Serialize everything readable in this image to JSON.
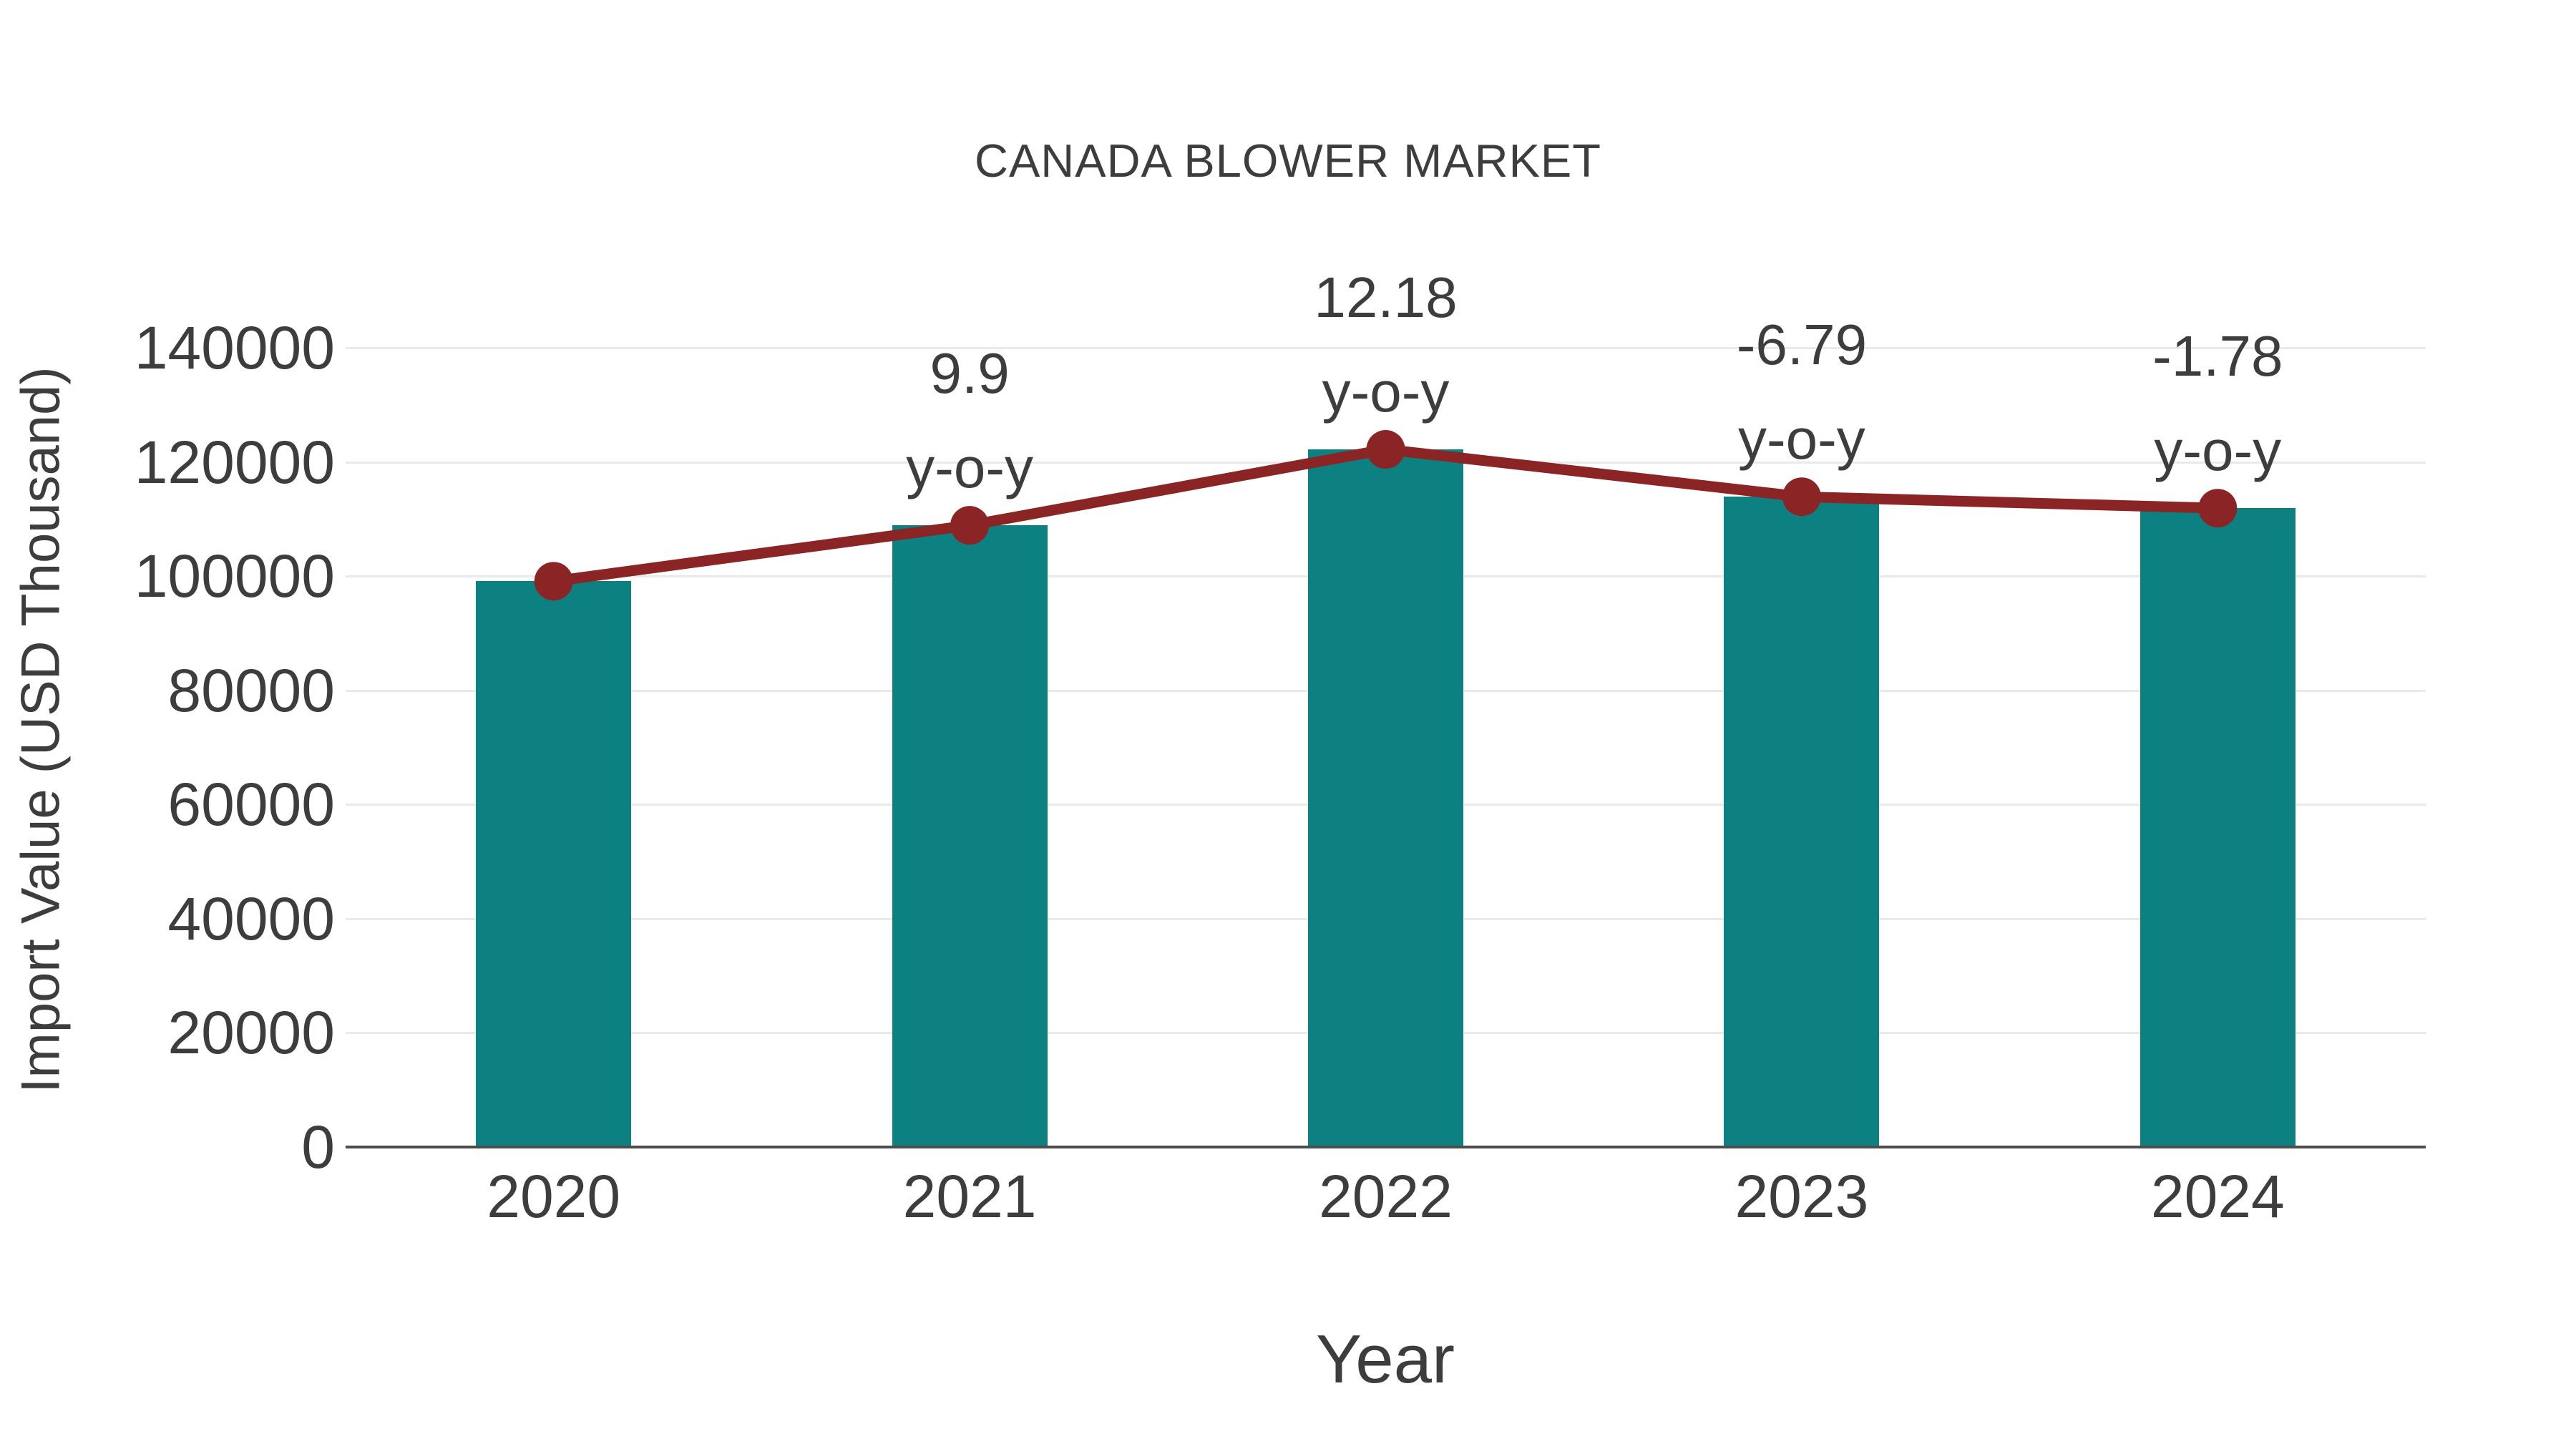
{
  "chart_data": {
    "type": "bar",
    "title": "CANADA BLOWER MARKET",
    "xlabel": "Year",
    "ylabel": "Import Value (USD Thousand)",
    "categories": [
      "2020",
      "2021",
      "2022",
      "2023",
      "2024"
    ],
    "series": [
      {
        "name": "Import Value",
        "type": "bar",
        "values": [
          99100,
          108900,
          122200,
          113900,
          111900
        ]
      },
      {
        "name": "y-o-y trend",
        "type": "line+markers",
        "values": [
          99100,
          108900,
          122200,
          113900,
          111900
        ]
      }
    ],
    "annotations": {
      "suffix": "y-o-y",
      "yoy_labels": [
        null,
        "9.9",
        "12.18",
        "-6.79",
        "-1.78"
      ]
    },
    "yticks": [
      0,
      20000,
      40000,
      60000,
      80000,
      100000,
      120000,
      140000
    ],
    "ylim": [
      0,
      148000
    ],
    "grid": true,
    "legend_position": "none",
    "colors": {
      "bar": "#0d8181",
      "line": "#8b2424",
      "text": "#3d3d3d",
      "grid": "#eaeaea",
      "axis": "#4d4d4d",
      "background": "#ffffff"
    }
  }
}
